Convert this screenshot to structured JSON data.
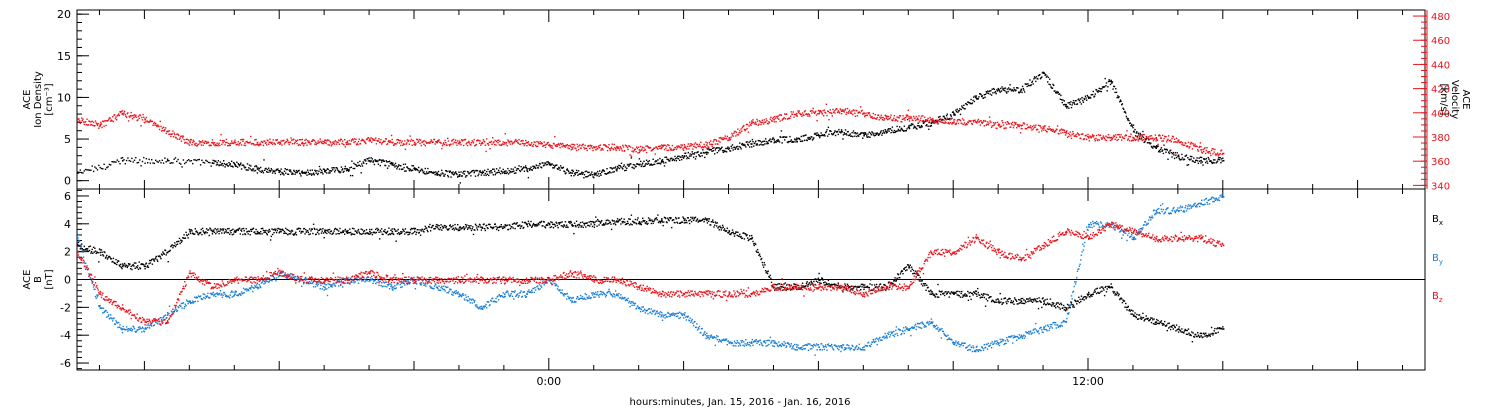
{
  "footer_label": "hours:minutes, Jan. 15, 2016 - Jan. 16, 2016",
  "colors": {
    "black": "#000000",
    "red": "#e8141c",
    "blue": "#1a7fd4"
  },
  "chart_data": [
    {
      "type": "scatter",
      "title": "",
      "ylabel_lines": [
        "ACE",
        "Ion Density",
        "[cm⁻³]"
      ],
      "y2label_lines": [
        "ACE",
        "Velocity",
        "[km/s]"
      ],
      "ylim": [
        -1,
        20.5
      ],
      "yticks": [
        0,
        5,
        10,
        15,
        20
      ],
      "y2lim": [
        337,
        485
      ],
      "y2ticks": [
        340,
        360,
        380,
        400,
        420,
        440,
        460,
        480
      ],
      "xlim": [
        -10.5,
        19.5
      ],
      "xticks": [
        0,
        12
      ],
      "xtick_labels": [
        "0:00",
        "12:00"
      ],
      "x_unit": "hours from 00:00 Jan. 16, 2016",
      "series": [
        {
          "name": "",
          "color": "black",
          "axis": "left",
          "x": [
            -10.5,
            -9.5,
            -8.5,
            -7.5,
            -7,
            -6.5,
            -6,
            -5.5,
            -5,
            -4.5,
            -4,
            -3.5,
            -3,
            -2.5,
            -2,
            -1.5,
            -1,
            -0.5,
            0,
            0.5,
            1,
            1.5,
            2,
            2.5,
            3,
            3.5,
            4,
            4.5,
            5,
            5.5,
            6,
            6.5,
            7,
            7.5,
            8,
            8.5,
            9,
            9.5,
            10,
            10.5,
            11,
            11.5,
            12,
            12.5,
            13,
            13.5,
            14,
            14.5,
            15
          ],
          "y": [
            1,
            2.5,
            2.5,
            2.2,
            2,
            1.5,
            1.2,
            1,
            1.2,
            1.5,
            2.5,
            2,
            1.5,
            1,
            0.8,
            1,
            1.2,
            1.5,
            2,
            1,
            0.8,
            1.5,
            2,
            2.5,
            3,
            3.5,
            4,
            4.5,
            5,
            5,
            5.5,
            6,
            5.5,
            6,
            6.5,
            7,
            8,
            10,
            11,
            11,
            13,
            9,
            10,
            12,
            6,
            4,
            3,
            2.5,
            2.5
          ]
        },
        {
          "name": "",
          "color": "red",
          "axis": "right",
          "x": [
            -10.5,
            -10,
            -9.5,
            -9,
            -8.5,
            -8,
            -7.5,
            -7,
            -6.5,
            -6,
            -5.5,
            -5,
            -4.5,
            -4,
            -3.5,
            -3,
            -2.5,
            -2,
            -1.5,
            -1,
            -0.5,
            0,
            0.5,
            1,
            1.5,
            2,
            2.5,
            3,
            3.5,
            4,
            4.5,
            5,
            5.5,
            6,
            6.5,
            7,
            7.5,
            8,
            8.5,
            9,
            9.5,
            10,
            10.5,
            11,
            11.5,
            12,
            12.5,
            13,
            13.5,
            14,
            14.5,
            15
          ],
          "y": [
            395,
            390,
            400,
            395,
            385,
            376,
            376,
            376,
            376,
            376,
            376,
            376,
            376,
            378,
            376,
            376,
            376,
            376,
            376,
            376,
            376,
            374,
            372,
            372,
            372,
            370,
            372,
            372,
            374,
            380,
            392,
            395,
            400,
            400,
            402,
            400,
            396,
            396,
            395,
            393,
            393,
            390,
            390,
            388,
            384,
            380,
            380,
            380,
            380,
            378,
            370,
            367
          ]
        }
      ]
    },
    {
      "type": "scatter",
      "title": "",
      "ylabel_lines": [
        "ACE",
        "B",
        "[nT]"
      ],
      "ylim": [
        -6.5,
        6.5
      ],
      "yticks": [
        -6,
        -4,
        -2,
        0,
        2,
        4,
        6
      ],
      "xlim": [
        -10.5,
        19.5
      ],
      "xticks": [
        0,
        12
      ],
      "xtick_labels": [
        "0:00",
        "12:00"
      ],
      "zero_line": true,
      "legend": {
        "placement": "right",
        "entries": [
          "Bx",
          "By",
          "Bz"
        ],
        "entry_base": "B",
        "entry_subs": [
          "x",
          "y",
          "z"
        ]
      },
      "series": [
        {
          "name": "Bx",
          "color": "black",
          "x": [
            -10.5,
            -10,
            -9.5,
            -9,
            -8.5,
            -8,
            -7.5,
            -7,
            -6.5,
            -6,
            -5.5,
            -5,
            -4.5,
            -4,
            -3.5,
            -3,
            -2.5,
            -2,
            -1.5,
            -1,
            -0.5,
            0,
            0.5,
            1,
            1.5,
            2,
            2.5,
            3,
            3.5,
            4,
            4.5,
            5,
            5.5,
            6,
            6.5,
            7,
            7.5,
            8,
            8.5,
            9,
            9.5,
            10,
            10.5,
            11,
            11.5,
            12,
            12.5,
            13,
            13.5,
            14,
            14.5,
            15
          ],
          "y": [
            2.5,
            2,
            1,
            1,
            2,
            3.5,
            3.5,
            3.5,
            3.5,
            3.5,
            3.5,
            3.5,
            3.5,
            3.5,
            3.5,
            3.5,
            3.8,
            3.8,
            3.8,
            3.8,
            4,
            4,
            4,
            4,
            4.2,
            4.2,
            4.3,
            4.3,
            4.3,
            3.5,
            3,
            -0.5,
            -0.5,
            0,
            -0.5,
            -0.5,
            -0.5,
            1,
            -1,
            -1,
            -1,
            -1.5,
            -1.5,
            -1.5,
            -2,
            -1,
            -0.5,
            -2.5,
            -3,
            -3.5,
            -4,
            -3.5
          ]
        },
        {
          "name": "By",
          "color": "blue",
          "x": [
            -10.5,
            -10,
            -9.5,
            -9,
            -8.5,
            -8,
            -7.5,
            -7,
            -6.5,
            -6,
            -5.5,
            -5,
            -4.5,
            -4,
            -3.5,
            -3,
            -2.5,
            -2,
            -1.5,
            -1,
            -0.5,
            0,
            0.5,
            1,
            1.5,
            2,
            2.5,
            3,
            3.5,
            4,
            4.5,
            5,
            5.5,
            6,
            6.5,
            7,
            7.5,
            8,
            8.5,
            9,
            9.5,
            10,
            10.5,
            11,
            11.5,
            12,
            12.5,
            13,
            13.5,
            14,
            14.5,
            15
          ],
          "y": [
            3,
            -2,
            -3.5,
            -3.5,
            -2.5,
            -1.5,
            -1,
            -1,
            -0.5,
            0.5,
            0,
            -0.5,
            0,
            0,
            -0.5,
            0,
            -0.5,
            -1,
            -2,
            -1,
            -1,
            0,
            -1.5,
            -1,
            -1,
            -2,
            -2.5,
            -2.5,
            -4,
            -4.5,
            -4.5,
            -4.5,
            -4.8,
            -4.8,
            -4.8,
            -4.8,
            -4,
            -3.5,
            -3,
            -4.5,
            -5,
            -4.5,
            -4,
            -3.5,
            -3,
            4,
            4,
            3,
            5,
            5,
            5.5,
            6
          ]
        },
        {
          "name": "Bz",
          "color": "red",
          "x": [
            -10.5,
            -10,
            -9.5,
            -9,
            -8.5,
            -8,
            -7.5,
            -7,
            -6.5,
            -6,
            -5.5,
            -5,
            -4.5,
            -4,
            -3.5,
            -3,
            -2.5,
            -2,
            -1.5,
            -1,
            -0.5,
            0,
            0.5,
            1,
            1.5,
            2,
            2.5,
            3,
            3.5,
            4,
            4.5,
            5,
            5.5,
            6,
            6.5,
            7,
            7.5,
            8,
            8.5,
            9,
            9.5,
            10,
            10.5,
            11,
            11.5,
            12,
            12.5,
            13,
            13.5,
            14,
            14.5,
            15
          ],
          "y": [
            2,
            -1,
            -2,
            -3,
            -3,
            0.5,
            -0.5,
            0,
            0,
            0.5,
            0,
            0,
            0,
            0.5,
            0,
            0,
            0,
            0,
            0,
            0,
            0,
            0,
            0.5,
            0,
            0,
            -0.5,
            -1,
            -1,
            -1,
            -1,
            -1,
            -0.5,
            -0.5,
            -0.5,
            -0.5,
            -1,
            -0.5,
            -0.5,
            2,
            2,
            3,
            2,
            1.5,
            2.5,
            3.5,
            3,
            4,
            3.5,
            3,
            3,
            3,
            2.5
          ]
        }
      ]
    }
  ]
}
